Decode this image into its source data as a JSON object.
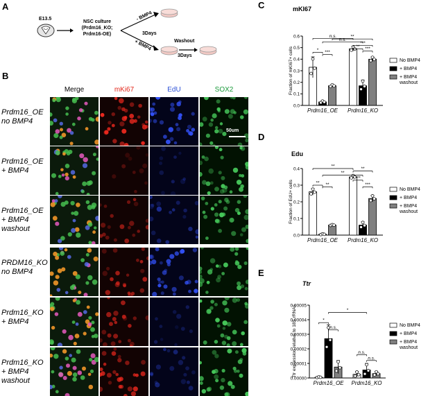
{
  "panel_a": {
    "letter": "A",
    "stage": "E13.5",
    "culture_lines": [
      "NSC culture",
      "(Prdm16_KO;",
      "Prdm16-OE)"
    ],
    "minus_bmp4": "- BMP4",
    "plus_bmp4": "+ BMP4",
    "three_days_1": "3Days",
    "washout": "Washout",
    "three_days_2": "3Days"
  },
  "panel_b": {
    "letter": "B",
    "columns": [
      "Merge",
      "mKi67",
      "EdU",
      "SOX2"
    ],
    "column_colors": [
      "#000000",
      "#e3281c",
      "#2a4fd6",
      "#1a9a3a"
    ],
    "rows": [
      {
        "line1": "Prdm16_OE",
        "line2": "no BMP4",
        "line3": ""
      },
      {
        "line1": "Prdm16_OE",
        "line2": "+ BMP4",
        "line3": ""
      },
      {
        "line1": "Prdm16_OE",
        "line2": "+ BMP4",
        "line3": "washout"
      },
      {
        "line1": "PRDM16_KO",
        "line2": "no BMP4",
        "line3": ""
      },
      {
        "line1": "Prdm16_KO",
        "line2": "+ BMP4",
        "line3": ""
      },
      {
        "line1": "Prdm16_KO",
        "line2": "+ BMP4",
        "line3": "washout"
      }
    ],
    "scale_bar": "50um"
  },
  "legend": [
    "No BMP4",
    "+ BMP4",
    "+ BMP4 washout"
  ],
  "chart_data": [
    {
      "panel": "C",
      "type": "bar",
      "title": "mKI67",
      "ylabel": "Fraction of mKI67+ cells",
      "ylim": [
        0,
        0.6
      ],
      "yticks": [
        "0.0",
        "0.1",
        "0.2",
        "0.3",
        "0.4",
        "0.5",
        "0.6"
      ],
      "groups": [
        "Prdm16_OE",
        "Prdm16_KO"
      ],
      "series": [
        {
          "name": "No BMP4",
          "color": "#ffffff",
          "values": [
            0.33,
            0.49
          ],
          "err": [
            0.09,
            0.02
          ]
        },
        {
          "name": "+ BMP4",
          "color": "#000000",
          "values": [
            0.03,
            0.17
          ],
          "err": [
            0.01,
            0.05
          ]
        },
        {
          "name": "+ BMP4 washout",
          "color": "#808080",
          "values": [
            0.17,
            0.4
          ],
          "err": [
            0.01,
            0.02
          ]
        }
      ],
      "significance": [
        "*",
        "***",
        "n.s.",
        "n.s.",
        "**",
        "**",
        "***",
        "**",
        "***"
      ]
    },
    {
      "panel": "D",
      "type": "bar",
      "title": "Edu",
      "ylabel": "Fraction of EdU+ cells",
      "ylim": [
        0,
        0.4
      ],
      "yticks": [
        "0.0",
        "0.1",
        "0.2",
        "0.3",
        "0.4"
      ],
      "groups": [
        "Prdm16_OE",
        "Prdm16_KO"
      ],
      "series": [
        {
          "name": "No BMP4",
          "color": "#ffffff",
          "values": [
            0.26,
            0.35
          ],
          "err": [
            0.02,
            0.01
          ]
        },
        {
          "name": "+ BMP4",
          "color": "#000000",
          "values": [
            0.005,
            0.06
          ],
          "err": [
            0.003,
            0.02
          ]
        },
        {
          "name": "+ BMP4 washout",
          "color": "#808080",
          "values": [
            0.06,
            0.22
          ],
          "err": [
            0.003,
            0.02
          ]
        }
      ],
      "significance": [
        "**",
        "**",
        "**",
        "**",
        "***",
        "***",
        "**"
      ]
    },
    {
      "panel": "E",
      "type": "bar",
      "title": "Ttr",
      "ylabel": "Ttr expression relative to 18S rRNAs",
      "ylim": [
        0,
        5e-05
      ],
      "yticks": [
        "0.00000",
        "0.00001",
        "0.00002",
        "0.00003",
        "0.00004",
        "0.00005"
      ],
      "groups": [
        "Prdm16_OE",
        "Prdm16_KO"
      ],
      "series": [
        {
          "name": "No BMP4",
          "color": "#ffffff",
          "values": [
            5e-07,
            2.5e-06
          ],
          "err": [
            3e-07,
            2e-06
          ]
        },
        {
          "name": "+ BMP4",
          "color": "#000000",
          "values": [
            2.7e-05,
            5.5e-06
          ],
          "err": [
            9.5e-06,
            4.5e-06
          ]
        },
        {
          "name": "+ BMP4 washout",
          "color": "#808080",
          "values": [
            7.5e-06,
            3e-06
          ],
          "err": [
            4.5e-06,
            1.5e-06
          ]
        }
      ],
      "significance": [
        "*",
        "n.s.",
        "*",
        "n.s.",
        "n.s."
      ]
    }
  ]
}
